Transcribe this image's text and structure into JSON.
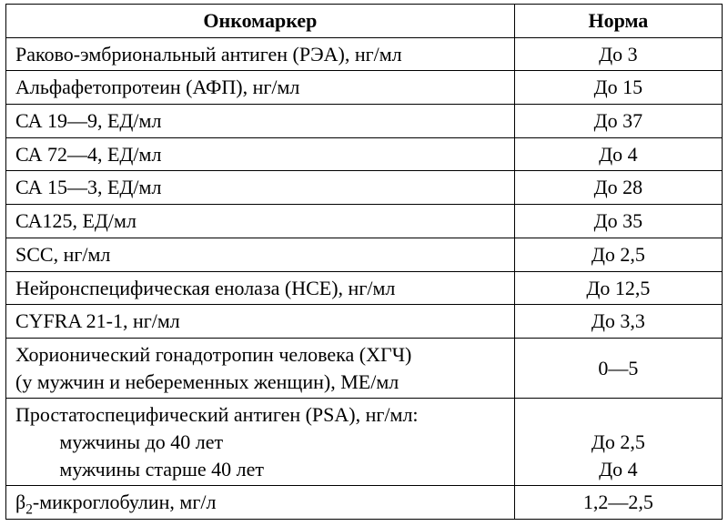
{
  "table": {
    "type": "table",
    "border_color": "#000000",
    "background_color": "#ffffff",
    "font_family": "Times New Roman",
    "header_fontsize_pt": 17,
    "cell_fontsize_pt": 17,
    "column_widths_pct": [
      71,
      29
    ],
    "columns": [
      "Онкомаркер",
      "Норма"
    ],
    "rows": [
      {
        "name": "Раково-эмбриональный антиген (РЭА), нг/мл",
        "norm": "До 3"
      },
      {
        "name": "Альфафетопротеин (АФП), нг/мл",
        "norm": "До 15"
      },
      {
        "name": "СА 19—9, ЕД/мл",
        "norm": "До 37"
      },
      {
        "name": "СА 72—4, ЕД/мл",
        "norm": "До 4"
      },
      {
        "name": "СА 15—3, ЕД/мл",
        "norm": "До 28"
      },
      {
        "name": "СА125, ЕД/мл",
        "norm": "До 35"
      },
      {
        "name": "SCC, нг/мл",
        "norm": "До 2,5"
      },
      {
        "name": "Нейронспецифическая енолаза (НСЕ), нг/мл",
        "norm": "До 12,5"
      },
      {
        "name": "CYFRA 21-1, нг/мл",
        "norm": "До 3,3"
      },
      {
        "name_line1": "Хорионический гонадотропин человека (ХГЧ)",
        "name_line2": "(у мужчин и небеременных женщин), МЕ/мл",
        "norm": "0—5"
      },
      {
        "psa_title": "Простатоспецифический антиген (PSA), нг/мл:",
        "psa_sub1": "мужчины до 40 лет",
        "psa_sub2": "мужчины старше 40 лет",
        "psa_norm1": "До 2,5",
        "psa_norm2": "До 4"
      },
      {
        "beta_prefix": "β",
        "beta_sub": "2",
        "beta_rest": "-микроглобулин, мг/л",
        "norm": "1,2—2,5"
      }
    ]
  }
}
